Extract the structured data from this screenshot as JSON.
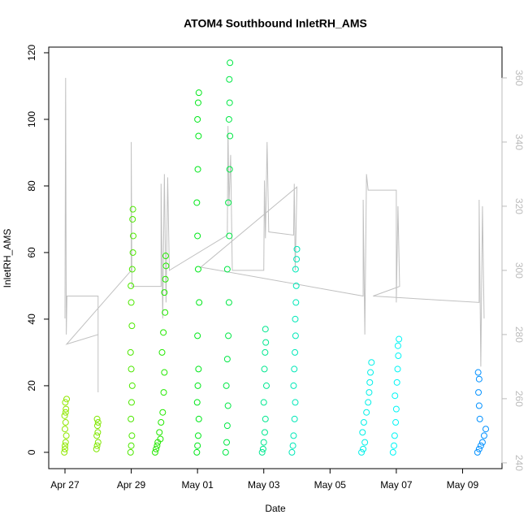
{
  "chart_data": {
    "type": "scatter",
    "title": "ATOM4 Southbound InletRH_AMS",
    "x_label": "Date",
    "y_label": "InletRH_AMS",
    "xlim": [
      -0.49,
      13.19
    ],
    "ylim": [
      -4.9,
      121.7
    ],
    "y2lim": [
      238.2,
      369.6
    ],
    "xticks": [
      {
        "value": 0,
        "label": "Apr 27"
      },
      {
        "value": 2,
        "label": "Apr 29"
      },
      {
        "value": 4,
        "label": "May 01"
      },
      {
        "value": 6,
        "label": "May 03"
      },
      {
        "value": 8,
        "label": "May 05"
      },
      {
        "value": 10,
        "label": "May 07"
      },
      {
        "value": 12,
        "label": "May 09"
      }
    ],
    "yticks": [
      0,
      20,
      40,
      60,
      80,
      100,
      120
    ],
    "y2ticks": [
      240,
      260,
      280,
      300,
      320,
      340,
      360
    ],
    "y2_tick_color": "#bbbbbb",
    "series": [
      {
        "type": "line",
        "axis": "y2",
        "color": "#c0c0c0",
        "x": [
          0.0,
          0.02,
          0.04,
          0.06,
          1.0,
          1.0,
          1.0,
          0.05,
          2.0,
          2.0,
          2.02,
          2.9,
          2.9,
          2.95,
          3.0,
          3.05,
          3.1,
          3.15,
          4.9,
          4.92,
          4.95,
          5.0,
          5.05,
          6.0,
          6.02,
          6.05,
          6.1,
          6.15,
          6.9,
          6.92,
          6.95,
          7.0,
          4.1,
          9.0,
          9.0,
          9.05,
          9.1,
          9.15,
          10.0,
          10.0,
          10.05,
          10.1,
          9.3,
          12.5,
          12.5,
          12.55,
          12.6,
          12.65
        ],
        "values": [
          285,
          360,
          280,
          292,
          292,
          262,
          280,
          277,
          300,
          340,
          295,
          295,
          327,
          285,
          330,
          290,
          329,
          300,
          311,
          345,
          320,
          336,
          300,
          300,
          328,
          310,
          340,
          312,
          311,
          327,
          300,
          326,
          301,
          292,
          322,
          280,
          330,
          325,
          325,
          290,
          320,
          295,
          292,
          290,
          322,
          270,
          320,
          285
        ]
      },
      {
        "color": "#90e800",
        "x": [
          -0.02,
          0.0,
          0.02,
          0.04,
          0.0,
          0.02,
          -0.01,
          0.03,
          0.01,
          0.05,
          0.0,
          0.02
        ],
        "values": [
          0,
          1,
          3,
          5,
          7,
          9,
          11,
          13,
          15,
          16,
          2,
          12
        ]
      },
      {
        "color": "#80e800",
        "x": [
          0.95,
          0.97,
          1.0,
          0.96,
          0.99,
          0.98,
          1.0,
          0.97
        ],
        "values": [
          1,
          2,
          3,
          5,
          6,
          8,
          9,
          10
        ]
      },
      {
        "color": "#4de800",
        "x": [
          1.98,
          2.0,
          2.02,
          1.99,
          2.01,
          2.03,
          2.0,
          1.98,
          2.02,
          2.0,
          1.99,
          2.03,
          2.05,
          2.06,
          2.04,
          2.05
        ],
        "values": [
          0,
          2,
          5,
          10,
          15,
          20,
          25,
          30,
          38,
          45,
          50,
          55,
          60,
          65,
          70,
          73
        ]
      },
      {
        "color": "#22e800",
        "x": [
          2.72,
          2.75,
          2.8,
          2.85,
          2.9,
          2.95,
          2.98,
          3.0,
          2.93,
          2.97,
          3.02,
          3.0,
          3.03,
          3.05,
          3.04,
          2.78,
          2.88
        ],
        "values": [
          0,
          1,
          3,
          6,
          9,
          12,
          18,
          24,
          30,
          36,
          42,
          48,
          52,
          56,
          59,
          2,
          4
        ]
      },
      {
        "color": "#00e81a",
        "x": [
          3.98,
          4.0,
          4.02,
          4.04,
          3.99,
          4.01,
          4.03,
          4.0,
          4.05,
          4.02,
          4.0,
          3.98,
          4.01,
          4.03,
          4.0,
          4.02,
          4.04
        ],
        "values": [
          0,
          2,
          5,
          10,
          15,
          20,
          25,
          35,
          45,
          55,
          65,
          75,
          85,
          95,
          100,
          105,
          108
        ]
      },
      {
        "color": "#00e845",
        "x": [
          4.85,
          4.88,
          4.9,
          4.92,
          4.87,
          4.9,
          4.93,
          4.95,
          4.9,
          4.96,
          4.93,
          4.97,
          4.98,
          4.95,
          4.97,
          4.96,
          4.98
        ],
        "values": [
          0,
          3,
          8,
          14,
          20,
          28,
          35,
          45,
          55,
          65,
          75,
          85,
          95,
          100,
          105,
          112,
          117
        ]
      },
      {
        "color": "#00e890",
        "x": [
          5.95,
          5.98,
          6.0,
          6.03,
          6.05,
          6.0,
          6.08,
          6.02,
          6.04,
          6.06,
          6.05
        ],
        "values": [
          0,
          1,
          3,
          6,
          10,
          15,
          20,
          25,
          30,
          33,
          37
        ]
      },
      {
        "color": "#00e8b8",
        "x": [
          6.85,
          6.88,
          6.9,
          6.93,
          6.95,
          6.9,
          6.92,
          6.94,
          6.96,
          6.95,
          6.97,
          6.98,
          6.96,
          6.99,
          7.0
        ],
        "values": [
          0,
          2,
          5,
          10,
          15,
          20,
          25,
          30,
          35,
          40,
          45,
          50,
          55,
          58,
          61
        ]
      },
      {
        "color": "#00f0e8",
        "x": [
          8.95,
          9.0,
          9.05,
          8.98,
          9.02,
          9.1,
          9.15,
          9.18,
          9.2,
          9.22,
          9.25
        ],
        "values": [
          0,
          1,
          3,
          6,
          9,
          12,
          15,
          18,
          21,
          24,
          27
        ]
      },
      {
        "color": "#00f5f5",
        "x": [
          9.9,
          9.93,
          9.95,
          9.98,
          10.0,
          9.96,
          10.02,
          10.04,
          10.06,
          10.05,
          10.08
        ],
        "values": [
          0,
          2,
          5,
          9,
          13,
          17,
          21,
          25,
          29,
          32,
          34
        ]
      },
      {
        "color": "#0090ff",
        "x": [
          12.45,
          12.5,
          12.55,
          12.6,
          12.65,
          12.7,
          12.52,
          12.5,
          12.48,
          12.5,
          12.47
        ],
        "values": [
          0,
          1,
          2,
          3,
          5,
          7,
          10,
          14,
          18,
          22,
          24
        ]
      }
    ]
  }
}
